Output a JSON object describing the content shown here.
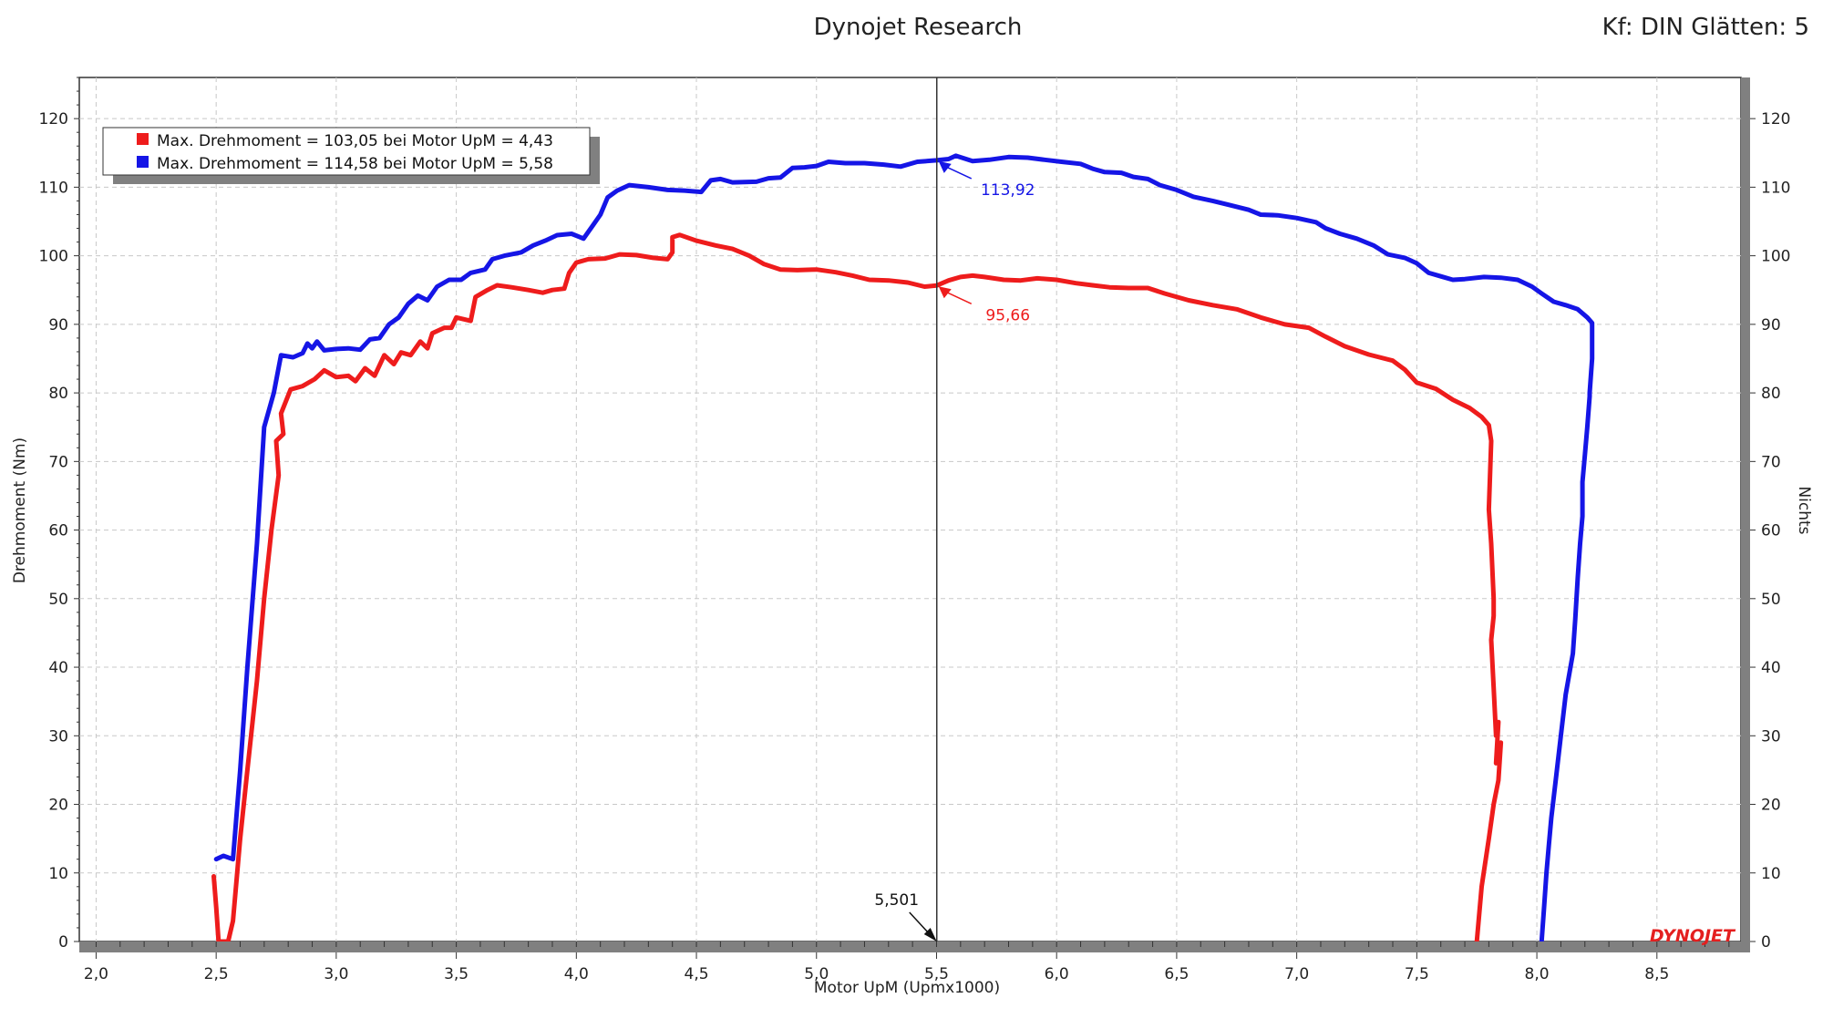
{
  "header": {
    "title": "Dynojet Research",
    "settings": "Kf: DIN Glätten: 5"
  },
  "branding": {
    "logo_text": "DYNOJET",
    "logo_color": "#e41f1f"
  },
  "legend": {
    "entries": [
      {
        "text": "Max. Drehmoment = 103,05 bei Motor UpM = 4,43",
        "color": "#ee1c1c"
      },
      {
        "text": "Max. Drehmoment = 114,58 bei Motor UpM = 5,58",
        "color": "#1515e6"
      }
    ]
  },
  "cursor": {
    "x_value": 5.501,
    "x_label": "5,501",
    "markers": [
      {
        "series": 0,
        "y": 95.66,
        "label": "95,66"
      },
      {
        "series": 1,
        "y": 113.92,
        "label": "113,92"
      }
    ]
  },
  "chart_data": {
    "type": "line",
    "title": "Dynojet Research",
    "xlabel": "Motor UpM (Upmx1000)",
    "ylabel": "Drehmoment (Nm)",
    "y2label": "Nichts",
    "xlim": [
      1.93,
      8.85
    ],
    "ylim": [
      0,
      126
    ],
    "xticks": [
      2.0,
      2.5,
      3.0,
      3.5,
      4.0,
      4.5,
      5.0,
      5.5,
      6.0,
      6.5,
      7.0,
      7.5,
      8.0,
      8.5
    ],
    "xtick_labels": [
      "2,0",
      "2,5",
      "3,0",
      "3,5",
      "4,0",
      "4,5",
      "5,0",
      "5,5",
      "6,0",
      "6,5",
      "7,0",
      "7,5",
      "8,0",
      "8,5"
    ],
    "yticks": [
      0,
      10,
      20,
      30,
      40,
      50,
      60,
      70,
      80,
      90,
      100,
      110,
      120
    ],
    "ytick_labels": [
      "0",
      "10",
      "20",
      "30",
      "40",
      "50",
      "60",
      "70",
      "80",
      "90",
      "100",
      "110",
      "120"
    ],
    "grid": true,
    "legend_position": "top-left",
    "series": [
      {
        "color": "#ee1c1c",
        "points": [
          [
            2.49,
            9.5
          ],
          [
            2.5,
            5
          ],
          [
            2.51,
            0
          ],
          [
            2.55,
            0
          ],
          [
            2.57,
            3
          ],
          [
            2.6,
            15
          ],
          [
            2.63,
            25
          ],
          [
            2.67,
            38
          ],
          [
            2.7,
            50
          ],
          [
            2.73,
            60
          ],
          [
            2.76,
            68
          ],
          [
            2.75,
            73
          ],
          [
            2.78,
            74
          ],
          [
            2.77,
            77
          ],
          [
            2.81,
            80.5
          ],
          [
            2.86,
            81
          ],
          [
            2.91,
            82
          ],
          [
            2.95,
            83.3
          ],
          [
            3.0,
            82.3
          ],
          [
            3.05,
            82.5
          ],
          [
            3.08,
            81.7
          ],
          [
            3.12,
            83.6
          ],
          [
            3.16,
            82.5
          ],
          [
            3.2,
            85.5
          ],
          [
            3.24,
            84.2
          ],
          [
            3.27,
            85.9
          ],
          [
            3.31,
            85.5
          ],
          [
            3.35,
            87.5
          ],
          [
            3.38,
            86.5
          ],
          [
            3.4,
            88.7
          ],
          [
            3.45,
            89.5
          ],
          [
            3.48,
            89.5
          ],
          [
            3.5,
            91
          ],
          [
            3.56,
            90.5
          ],
          [
            3.58,
            94
          ],
          [
            3.63,
            95
          ],
          [
            3.67,
            95.7
          ],
          [
            3.73,
            95.4
          ],
          [
            3.8,
            95
          ],
          [
            3.86,
            94.6
          ],
          [
            3.9,
            95
          ],
          [
            3.95,
            95.2
          ],
          [
            3.97,
            97.5
          ],
          [
            4.0,
            99
          ],
          [
            4.05,
            99.5
          ],
          [
            4.12,
            99.6
          ],
          [
            4.18,
            100.2
          ],
          [
            4.25,
            100.1
          ],
          [
            4.32,
            99.7
          ],
          [
            4.38,
            99.5
          ],
          [
            4.4,
            100.5
          ],
          [
            4.4,
            102.7
          ],
          [
            4.43,
            103.05
          ],
          [
            4.5,
            102.2
          ],
          [
            4.58,
            101.5
          ],
          [
            4.65,
            101
          ],
          [
            4.72,
            100
          ],
          [
            4.78,
            98.8
          ],
          [
            4.85,
            98
          ],
          [
            4.92,
            97.9
          ],
          [
            5.0,
            98
          ],
          [
            5.08,
            97.6
          ],
          [
            5.15,
            97.1
          ],
          [
            5.22,
            96.5
          ],
          [
            5.3,
            96.4
          ],
          [
            5.38,
            96.1
          ],
          [
            5.45,
            95.5
          ],
          [
            5.5,
            95.66
          ],
          [
            5.55,
            96.4
          ],
          [
            5.6,
            96.9
          ],
          [
            5.65,
            97.1
          ],
          [
            5.7,
            96.9
          ],
          [
            5.78,
            96.5
          ],
          [
            5.85,
            96.4
          ],
          [
            5.92,
            96.7
          ],
          [
            6.0,
            96.5
          ],
          [
            6.08,
            96
          ],
          [
            6.15,
            95.7
          ],
          [
            6.22,
            95.4
          ],
          [
            6.3,
            95.3
          ],
          [
            6.38,
            95.3
          ],
          [
            6.45,
            94.5
          ],
          [
            6.55,
            93.5
          ],
          [
            6.65,
            92.8
          ],
          [
            6.75,
            92.2
          ],
          [
            6.85,
            91
          ],
          [
            6.95,
            90
          ],
          [
            7.05,
            89.5
          ],
          [
            7.12,
            88.2
          ],
          [
            7.2,
            86.8
          ],
          [
            7.3,
            85.6
          ],
          [
            7.4,
            84.7
          ],
          [
            7.45,
            83.4
          ],
          [
            7.5,
            81.5
          ],
          [
            7.58,
            80.6
          ],
          [
            7.65,
            79
          ],
          [
            7.72,
            77.8
          ],
          [
            7.77,
            76.5
          ],
          [
            7.8,
            75.3
          ],
          [
            7.81,
            73
          ],
          [
            7.8,
            63
          ],
          [
            7.81,
            58
          ],
          [
            7.82,
            50
          ],
          [
            7.82,
            47.5
          ],
          [
            7.81,
            44
          ],
          [
            7.82,
            37
          ],
          [
            7.83,
            30
          ],
          [
            7.84,
            32
          ],
          [
            7.83,
            26
          ],
          [
            7.85,
            29
          ],
          [
            7.84,
            23.5
          ],
          [
            7.82,
            20
          ],
          [
            7.8,
            15
          ],
          [
            7.77,
            8
          ],
          [
            7.75,
            0
          ]
        ]
      },
      {
        "color": "#1515e6",
        "points": [
          [
            2.5,
            12
          ],
          [
            2.53,
            12.5
          ],
          [
            2.57,
            12
          ],
          [
            2.6,
            25
          ],
          [
            2.63,
            40
          ],
          [
            2.67,
            58
          ],
          [
            2.7,
            75
          ],
          [
            2.74,
            80
          ],
          [
            2.77,
            85.5
          ],
          [
            2.82,
            85.2
          ],
          [
            2.86,
            85.8
          ],
          [
            2.88,
            87.2
          ],
          [
            2.9,
            86.5
          ],
          [
            2.92,
            87.5
          ],
          [
            2.95,
            86.2
          ],
          [
            3.0,
            86.4
          ],
          [
            3.05,
            86.5
          ],
          [
            3.1,
            86.3
          ],
          [
            3.14,
            87.8
          ],
          [
            3.18,
            88
          ],
          [
            3.22,
            90
          ],
          [
            3.26,
            91
          ],
          [
            3.3,
            93
          ],
          [
            3.34,
            94.2
          ],
          [
            3.38,
            93.5
          ],
          [
            3.42,
            95.5
          ],
          [
            3.47,
            96.5
          ],
          [
            3.52,
            96.5
          ],
          [
            3.56,
            97.5
          ],
          [
            3.62,
            98
          ],
          [
            3.65,
            99.5
          ],
          [
            3.7,
            100
          ],
          [
            3.77,
            100.5
          ],
          [
            3.82,
            101.5
          ],
          [
            3.87,
            102.2
          ],
          [
            3.92,
            103
          ],
          [
            3.98,
            103.2
          ],
          [
            4.03,
            102.5
          ],
          [
            4.07,
            104.5
          ],
          [
            4.1,
            106
          ],
          [
            4.13,
            108.5
          ],
          [
            4.17,
            109.5
          ],
          [
            4.22,
            110.3
          ],
          [
            4.3,
            110
          ],
          [
            4.38,
            109.6
          ],
          [
            4.45,
            109.5
          ],
          [
            4.52,
            109.3
          ],
          [
            4.56,
            111
          ],
          [
            4.6,
            111.2
          ],
          [
            4.65,
            110.7
          ],
          [
            4.75,
            110.8
          ],
          [
            4.8,
            111.3
          ],
          [
            4.85,
            111.4
          ],
          [
            4.9,
            112.8
          ],
          [
            4.95,
            112.9
          ],
          [
            5.0,
            113.1
          ],
          [
            5.05,
            113.7
          ],
          [
            5.12,
            113.5
          ],
          [
            5.2,
            113.5
          ],
          [
            5.28,
            113.3
          ],
          [
            5.35,
            113
          ],
          [
            5.42,
            113.7
          ],
          [
            5.5,
            113.92
          ],
          [
            5.55,
            114.1
          ],
          [
            5.58,
            114.58
          ],
          [
            5.65,
            113.8
          ],
          [
            5.72,
            114
          ],
          [
            5.8,
            114.4
          ],
          [
            5.88,
            114.3
          ],
          [
            5.95,
            114
          ],
          [
            6.02,
            113.7
          ],
          [
            6.1,
            113.4
          ],
          [
            6.15,
            112.7
          ],
          [
            6.2,
            112.2
          ],
          [
            6.27,
            112.1
          ],
          [
            6.32,
            111.5
          ],
          [
            6.38,
            111.2
          ],
          [
            6.43,
            110.3
          ],
          [
            6.5,
            109.6
          ],
          [
            6.57,
            108.6
          ],
          [
            6.65,
            108
          ],
          [
            6.72,
            107.4
          ],
          [
            6.8,
            106.7
          ],
          [
            6.85,
            106
          ],
          [
            6.92,
            105.9
          ],
          [
            7.0,
            105.5
          ],
          [
            7.08,
            104.9
          ],
          [
            7.12,
            104
          ],
          [
            7.18,
            103.2
          ],
          [
            7.25,
            102.5
          ],
          [
            7.32,
            101.5
          ],
          [
            7.38,
            100.2
          ],
          [
            7.45,
            99.7
          ],
          [
            7.5,
            98.9
          ],
          [
            7.55,
            97.5
          ],
          [
            7.6,
            97
          ],
          [
            7.65,
            96.5
          ],
          [
            7.7,
            96.6
          ],
          [
            7.78,
            96.9
          ],
          [
            7.85,
            96.8
          ],
          [
            7.92,
            96.5
          ],
          [
            7.98,
            95.5
          ],
          [
            8.02,
            94.5
          ],
          [
            8.07,
            93.3
          ],
          [
            8.12,
            92.8
          ],
          [
            8.17,
            92.2
          ],
          [
            8.21,
            91
          ],
          [
            8.23,
            90.2
          ],
          [
            8.23,
            85
          ],
          [
            8.22,
            80
          ],
          [
            8.22,
            79.5
          ],
          [
            8.21,
            75
          ],
          [
            8.2,
            71
          ],
          [
            8.19,
            67
          ],
          [
            8.19,
            62
          ],
          [
            8.18,
            58
          ],
          [
            8.17,
            53
          ],
          [
            8.16,
            47
          ],
          [
            8.15,
            42
          ],
          [
            8.12,
            36
          ],
          [
            8.1,
            30
          ],
          [
            8.08,
            24
          ],
          [
            8.06,
            18
          ],
          [
            8.05,
            14
          ],
          [
            8.04,
            10
          ],
          [
            8.03,
            5
          ],
          [
            8.02,
            0
          ]
        ]
      }
    ]
  }
}
